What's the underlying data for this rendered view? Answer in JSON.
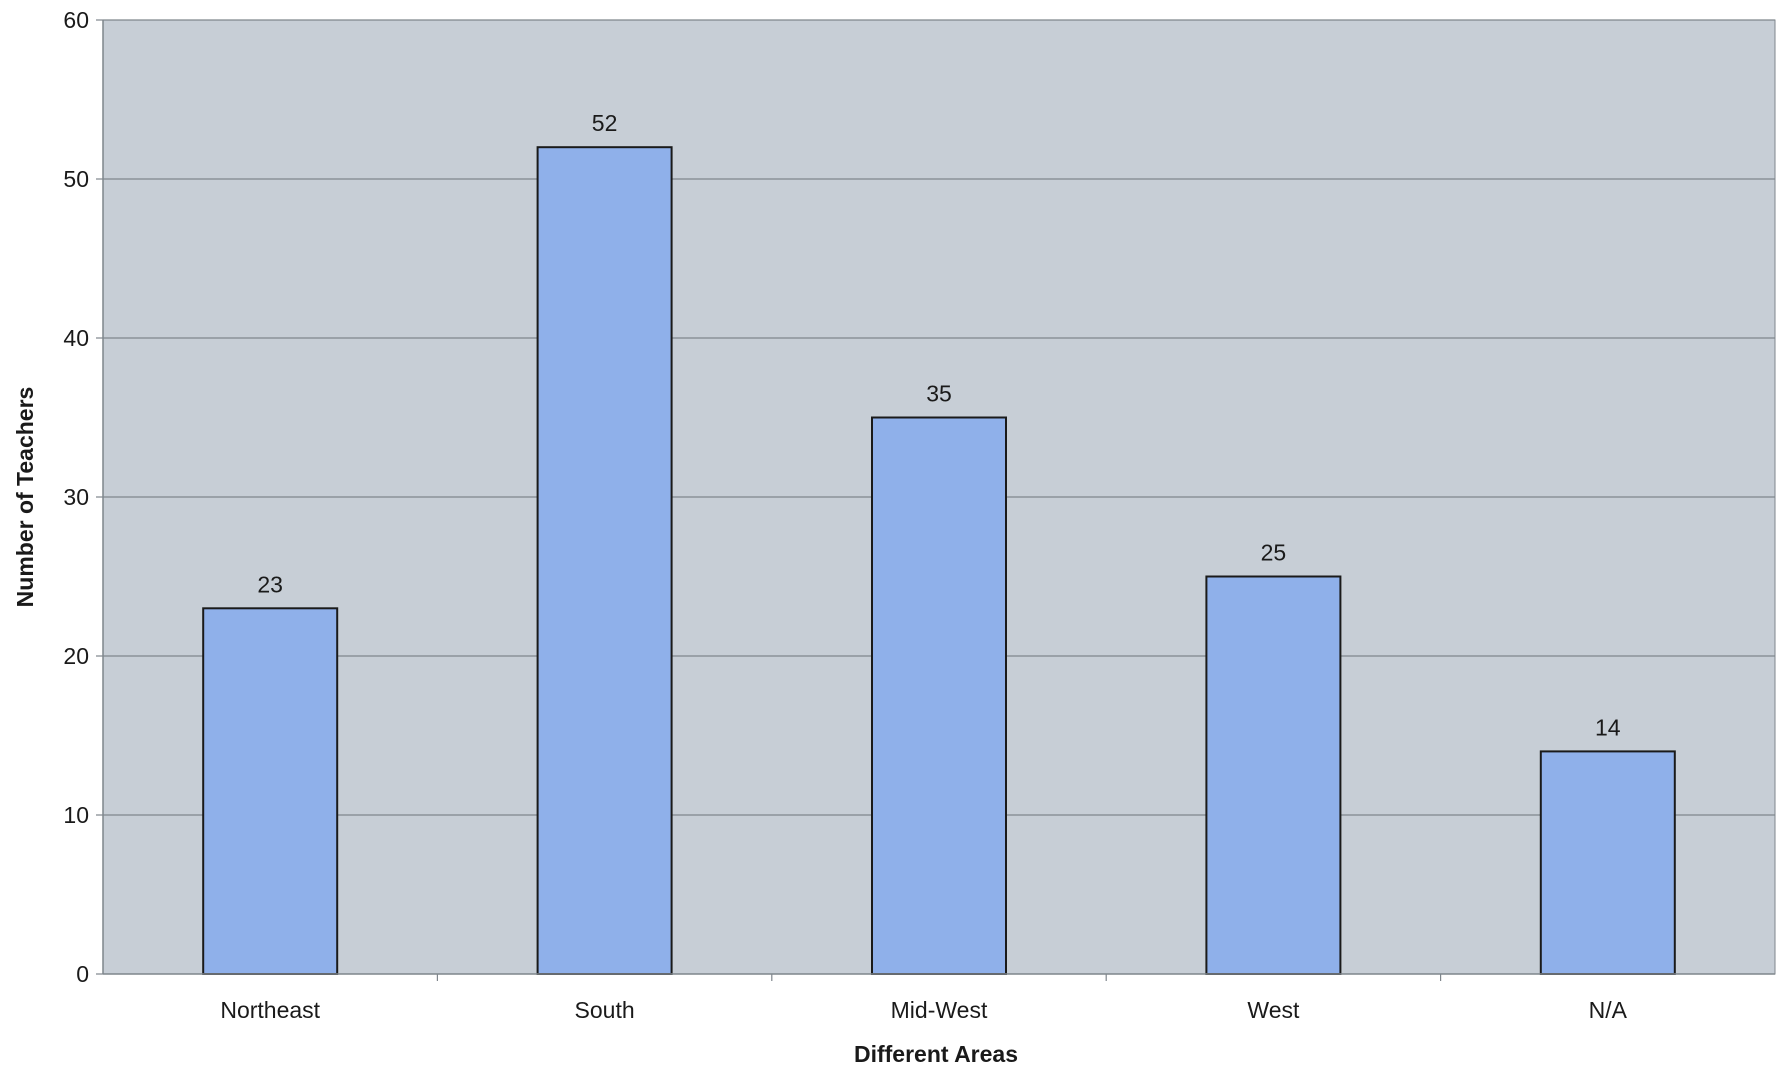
{
  "chart_data": {
    "type": "bar",
    "categories": [
      "Northeast",
      "South",
      "Mid-West",
      "West",
      "N/A"
    ],
    "values": [
      23,
      52,
      35,
      25,
      14
    ],
    "title": "",
    "xlabel": "Different Areas",
    "ylabel": "Number of Teachers",
    "ylim": [
      0,
      60
    ],
    "yticks": [
      "0",
      "10",
      "20",
      "30",
      "40",
      "50",
      "60"
    ],
    "grid": true,
    "legend": "none",
    "data_labels": true,
    "colors": {
      "bar_fill": "#8fb0ea",
      "bar_stroke": "#1a1a1a",
      "plot_background": "#c7ced6",
      "gridline": "#7f868c",
      "page_background": "#ffffff"
    }
  }
}
